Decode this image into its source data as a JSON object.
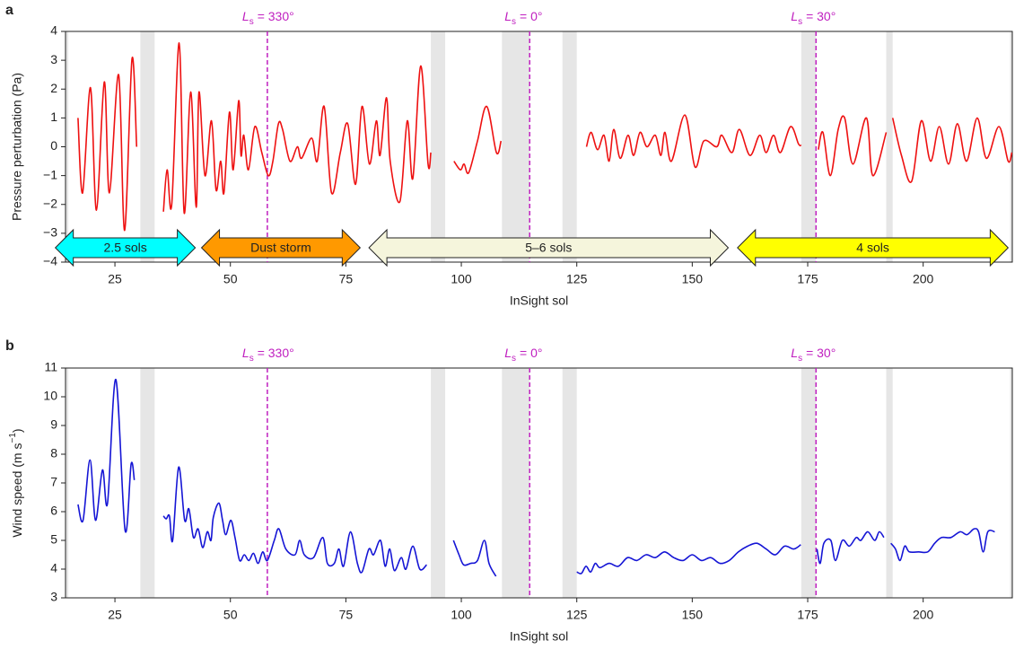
{
  "chart_data": [
    {
      "type": "line",
      "panel_label": "a",
      "xlabel": "InSight sol",
      "ylabel": "Pressure perturbation (Pa)",
      "xlim": [
        14.3,
        219.3
      ],
      "xticks": [
        25,
        50,
        75,
        100,
        125,
        150,
        175,
        200
      ],
      "ylim": [
        -4,
        4
      ],
      "yticks": [
        {
          "value": -4,
          "label": "−4"
        },
        {
          "value": -3,
          "label": "−3"
        },
        {
          "value": -2,
          "label": "−2"
        },
        {
          "value": -1,
          "label": "−1"
        },
        0,
        1,
        2,
        3,
        4
      ],
      "shaded_spans": [
        [
          14.3,
          14.9
        ],
        [
          30.5,
          33.6
        ],
        [
          93.4,
          96.5
        ],
        [
          108.8,
          114.8
        ],
        [
          121.9,
          125
        ],
        [
          173.6,
          176.8
        ],
        [
          192,
          193.4
        ],
        [
          218.8,
          219.3
        ]
      ],
      "span_color": "#e6e6e6",
      "markers": [
        {
          "x": 58,
          "symbol": "L",
          "sub": "s",
          "text": "= 330°"
        },
        {
          "x": 114.8,
          "symbol": "L",
          "sub": "s",
          "text": "= 0°"
        },
        {
          "x": 176.8,
          "symbol": "L",
          "sub": "s",
          "text": "= 30°"
        }
      ],
      "marker_color": "#c020c0",
      "arrows": [
        {
          "label": "2.5 sols",
          "start": 12.1,
          "end": 42.4,
          "color": "#00ffff"
        },
        {
          "label": "Dust storm",
          "start": 43.75,
          "end": 78.1,
          "color": "#ff9900"
        },
        {
          "label": "5–6 sols",
          "start": 80,
          "end": 157.8,
          "color": "#f5f5dc"
        },
        {
          "label": "4 sols",
          "start": 159.8,
          "end": 218.4,
          "color": "#ffff00"
        }
      ],
      "series": [
        {
          "color": "#ee1111",
          "x": [
            17,
            18,
            19.7,
            21,
            22.7,
            23.8,
            25.8,
            27.1,
            28.7,
            29.7,
            32,
            35.5,
            36.3,
            37.3,
            38.9,
            40.0,
            41.4,
            42.6,
            43.2,
            44.5,
            45.9,
            46.9,
            47.9,
            48.6,
            49.8,
            50.6,
            51.8,
            52.3,
            52.9,
            53.9,
            55.3,
            56.8,
            58.2,
            59.2,
            60.4,
            61.3,
            62.9,
            64.5,
            65.4,
            67.6,
            68.8,
            70.3,
            71.9,
            73.8,
            75.4,
            77.1,
            78.5,
            80.1,
            81.6,
            82.4,
            83.8,
            84.6,
            86.7,
            88.3,
            89.5,
            91.2,
            92.8,
            93.4,
            95,
            98.4,
            99.8,
            100.6,
            101.6,
            103.5,
            105.5,
            107.6,
            108.6,
            117,
            127.1,
            128.1,
            129.5,
            130.9,
            132.0,
            133.0,
            134.4,
            136.1,
            137.3,
            138.7,
            140.2,
            142.0,
            143.2,
            144.1,
            145.5,
            148.4,
            150.6,
            152.5,
            155.3,
            156.4,
            158.6,
            160.2,
            162.5,
            164.6,
            166.0,
            167.6,
            169.1,
            171.3,
            173.0,
            173.6,
            175,
            177.3,
            178.3,
            179.9,
            181.6,
            183.0,
            184.8,
            187.7,
            189.1,
            192.0,
            192.7,
            193.4,
            195.3,
            197.5,
            199.6,
            201.6,
            203.5,
            205.5,
            207.4,
            209.4,
            211.7,
            213.7,
            216.4,
            218.4,
            219.2
          ],
          "values": [
            1.0,
            -1.6,
            2.05,
            -2.2,
            2.25,
            -1.6,
            2.5,
            -2.9,
            3.05,
            0.0,
            null,
            -2.25,
            -0.8,
            -2.0,
            3.6,
            -2.3,
            1.9,
            -2.1,
            1.9,
            -1.0,
            0.9,
            -1.5,
            -0.5,
            -1.6,
            1.2,
            -0.8,
            1.6,
            -0.3,
            0.4,
            -0.8,
            0.7,
            -0.2,
            -1.0,
            -0.5,
            0.8,
            0.6,
            -0.5,
            0.0,
            -0.4,
            0.3,
            -0.5,
            1.4,
            -1.6,
            -0.2,
            0.8,
            -1.3,
            1.4,
            -0.6,
            0.9,
            -0.3,
            1.7,
            -0.5,
            -1.9,
            0.9,
            -1.1,
            2.8,
            -0.6,
            -0.2,
            null,
            -0.5,
            -0.8,
            -0.6,
            -0.9,
            0.2,
            1.4,
            -0.2,
            0.2,
            null,
            0,
            0.5,
            -0.1,
            0.4,
            -0.5,
            0.6,
            -0.4,
            0.4,
            -0.3,
            0.5,
            0.0,
            0.4,
            -0.3,
            0.5,
            -0.5,
            1.1,
            -0.7,
            0.2,
            0.0,
            0.4,
            -0.2,
            0.6,
            -0.3,
            0.4,
            -0.2,
            0.4,
            -0.2,
            0.7,
            0.1,
            0.05,
            null,
            -0.1,
            0.5,
            -1.0,
            0.6,
            1.0,
            -0.6,
            1.0,
            -1.0,
            0.5,
            null,
            1.0,
            -0.3,
            -1.2,
            0.9,
            -0.5,
            0.7,
            -0.6,
            0.8,
            -0.5,
            1.0,
            -0.4,
            0.7,
            -0.5,
            -0.2
          ]
        }
      ]
    },
    {
      "type": "line",
      "panel_label": "b",
      "xlabel": "InSight sol",
      "ylabel": [
        "Wind speed (m s",
        "−1",
        ")"
      ],
      "xlim": [
        14.3,
        219.3
      ],
      "xticks": [
        25,
        50,
        75,
        100,
        125,
        150,
        175,
        200
      ],
      "ylim": [
        3,
        11
      ],
      "yticks": [
        3,
        4,
        5,
        6,
        7,
        8,
        9,
        10,
        11
      ],
      "shaded_spans": [
        [
          14.3,
          14.9
        ],
        [
          30.5,
          33.6
        ],
        [
          93.4,
          96.5
        ],
        [
          108.8,
          114.8
        ],
        [
          121.9,
          125
        ],
        [
          173.6,
          176.8
        ],
        [
          192,
          193.4
        ],
        [
          218.8,
          219.3
        ]
      ],
      "span_color": "#e6e6e6",
      "markers": [
        {
          "x": 58,
          "symbol": "L",
          "sub": "s",
          "text": "= 330°"
        },
        {
          "x": 114.8,
          "symbol": "L",
          "sub": "s",
          "text": "= 0°"
        },
        {
          "x": 176.8,
          "symbol": "L",
          "sub": "s",
          "text": "= 30°"
        }
      ],
      "marker_color": "#c020c0",
      "series": [
        {
          "color": "#1515d5",
          "x": [
            17,
            18.1,
            19.6,
            20.8,
            22.3,
            23.4,
            25.2,
            27.2,
            28.5,
            29.2,
            32,
            35.5,
            36.1,
            36.8,
            37.5,
            38.8,
            40.1,
            41,
            42,
            43,
            44,
            45,
            45.8,
            46.3,
            47.5,
            48.3,
            49,
            50.1,
            51,
            52,
            53,
            54,
            55,
            56,
            57,
            58,
            59.5,
            60.5,
            62,
            64,
            65,
            66,
            68,
            70,
            71,
            72.5,
            73.5,
            74.5,
            76,
            77.5,
            78.5,
            80,
            81,
            82.5,
            83.5,
            84.5,
            85.5,
            87,
            88,
            89.5,
            91,
            92.5,
            95,
            98.3,
            99.5,
            100.5,
            102,
            103.5,
            105,
            106,
            107.5,
            117,
            125,
            126,
            127,
            128,
            129,
            130,
            132,
            134,
            136,
            138,
            140,
            142,
            144,
            146,
            148,
            150,
            152,
            154,
            156,
            158,
            160,
            162,
            164,
            166,
            168,
            170,
            172,
            173.5,
            175,
            177,
            177.7,
            178.5,
            180,
            181,
            182.5,
            184,
            185.5,
            186.5,
            188,
            189.5,
            190.5,
            191.5,
            192.3,
            193,
            194,
            195,
            196,
            197,
            199,
            201,
            202.5,
            204,
            206,
            208,
            209.5,
            211,
            212,
            213,
            214,
            215.5
          ],
          "values": [
            6.25,
            5.7,
            7.8,
            5.7,
            7.45,
            6.3,
            10.6,
            5.35,
            7.65,
            7.1,
            null,
            5.85,
            5.75,
            5.85,
            5.0,
            7.55,
            5.7,
            6.1,
            5.1,
            5.4,
            4.75,
            5.3,
            5.0,
            5.8,
            6.3,
            5.7,
            5.2,
            5.7,
            5.1,
            4.3,
            4.5,
            4.3,
            4.55,
            4.2,
            4.6,
            4.3,
            5.0,
            5.4,
            4.7,
            4.5,
            5.0,
            4.5,
            4.4,
            5.1,
            4.2,
            4.2,
            4.7,
            4.1,
            5.3,
            4.2,
            3.9,
            4.7,
            4.5,
            5.0,
            4.1,
            4.7,
            3.95,
            4.4,
            4.0,
            4.8,
            4.0,
            4.15,
            null,
            5.0,
            4.5,
            4.15,
            4.2,
            4.3,
            5.0,
            4.2,
            3.75,
            null,
            3.9,
            3.85,
            4.1,
            3.9,
            4.2,
            4.05,
            4.2,
            4.1,
            4.4,
            4.3,
            4.5,
            4.4,
            4.6,
            4.4,
            4.3,
            4.5,
            4.3,
            4.4,
            4.2,
            4.3,
            4.6,
            4.8,
            4.9,
            4.7,
            4.5,
            4.8,
            4.7,
            4.85,
            null,
            4.7,
            4.2,
            4.9,
            5.0,
            4.3,
            5.0,
            4.8,
            5.1,
            5.0,
            5.3,
            5.0,
            5.3,
            5.1,
            null,
            4.9,
            4.7,
            4.3,
            4.8,
            4.6,
            4.6,
            4.6,
            4.9,
            5.1,
            5.1,
            5.3,
            5.2,
            5.4,
            5.3,
            4.6,
            5.3,
            5.3
          ]
        }
      ]
    }
  ]
}
